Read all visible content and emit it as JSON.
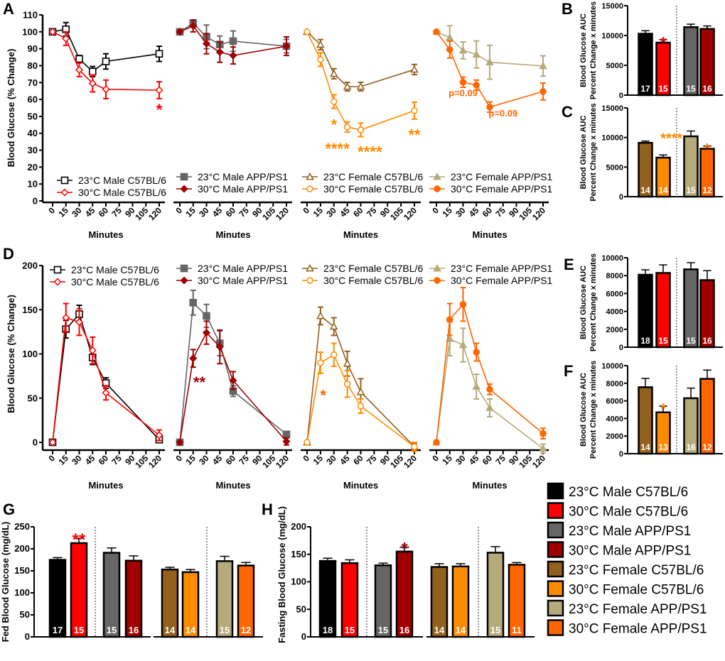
{
  "colors": {
    "m23c57": "#000000",
    "m30c57": "#ff0000",
    "m23app": "#666666",
    "m30app": "#a00000",
    "f23c57": "#93601e",
    "f30c57": "#ff8c00",
    "f23app": "#b5aa7a",
    "f30app": "#ff6600"
  },
  "legend": [
    {
      "key": "m23c57",
      "label": "23°C Male C57BL/6"
    },
    {
      "key": "m30c57",
      "label": "30°C Male C57BL/6"
    },
    {
      "key": "m23app",
      "label": "23°C Male APP/PS1"
    },
    {
      "key": "m30app",
      "label": "30°C Male APP/PS1"
    },
    {
      "key": "f23c57",
      "label": "23°C Female C57BL/6"
    },
    {
      "key": "f30c57",
      "label": "30°C Female C57BL/6"
    },
    {
      "key": "f23app",
      "label": "23°C Female APP/PS1"
    },
    {
      "key": "f30app",
      "label": "30°C Female APP/PS1"
    }
  ],
  "chart_data": [
    {
      "panel": "A",
      "type": "line",
      "ylabel": "Blood Glucose (% Change)",
      "xlabel": "Minutes",
      "ylim": [
        0,
        110
      ],
      "yticks": [
        0,
        10,
        20,
        30,
        40,
        50,
        60,
        70,
        80,
        90,
        100,
        110
      ],
      "xticks": [
        0,
        15,
        30,
        45,
        60,
        75,
        90,
        105,
        120
      ],
      "subplots": [
        {
          "series": [
            {
              "key": "m23c57",
              "name": "23°C Male C57BL/6",
              "marker": "square-open",
              "x": [
                0,
                15,
                30,
                45,
                60,
                120
              ],
              "y": [
                100,
                101.5,
                84,
                76.5,
                82.5,
                87
              ],
              "err": [
                0,
                4,
                2,
                3,
                4.5,
                4.5
              ]
            },
            {
              "key": "m30c57",
              "name": "30°C Male C57BL/6",
              "marker": "diamond-open",
              "x": [
                0,
                15,
                30,
                45,
                60,
                120
              ],
              "y": [
                100,
                96,
                77.5,
                69.5,
                66,
                65.5
              ],
              "err": [
                0,
                4,
                4,
                5,
                5.5,
                5
              ]
            }
          ],
          "annotations": [
            {
              "text": "*",
              "x": 120,
              "y": 55,
              "key": "m30c57"
            }
          ]
        },
        {
          "series": [
            {
              "key": "m23app",
              "name": "23°C Male APP/PS1",
              "marker": "square",
              "x": [
                0,
                15,
                30,
                45,
                60,
                120
              ],
              "y": [
                100,
                105,
                97,
                92.5,
                94.5,
                91.5
              ],
              "err": [
                0,
                2,
                7,
                5,
                6,
                4
              ]
            },
            {
              "key": "m30app",
              "name": "30°C Male APP/PS1",
              "marker": "diamond",
              "x": [
                0,
                15,
                30,
                45,
                60,
                120
              ],
              "y": [
                100,
                103.5,
                93,
                88,
                86,
                91.5
              ],
              "err": [
                0,
                3.5,
                6,
                6,
                5,
                5.5
              ]
            }
          ],
          "annotations": []
        },
        {
          "series": [
            {
              "key": "f23c57",
              "name": "23°C Female C57BL/6",
              "marker": "triangle-open",
              "x": [
                0,
                15,
                30,
                45,
                60,
                120
              ],
              "y": [
                100,
                92.4,
                75.2,
                67.6,
                67.6,
                77.7
              ],
              "err": [
                0,
                3,
                3,
                2.5,
                2.5,
                3
              ]
            },
            {
              "key": "f30c57",
              "name": "30°C Female C57BL/6",
              "marker": "circle-open",
              "x": [
                0,
                15,
                30,
                45,
                60,
                120
              ],
              "y": [
                100,
                83.6,
                58.8,
                43.7,
                42,
                53.4
              ],
              "err": [
                0,
                4,
                4,
                3,
                4,
                5
              ]
            }
          ],
          "annotations": [
            {
              "text": "*",
              "x": 30,
              "y": 46,
              "key": "f30c57"
            },
            {
              "text": "****",
              "x": 37,
              "y": 32,
              "key": "f30c57"
            },
            {
              "text": "****",
              "x": 67,
              "y": 30,
              "key": "f30c57"
            },
            {
              "text": "**",
              "x": 120,
              "y": 40,
              "key": "f30c57"
            }
          ]
        },
        {
          "series": [
            {
              "key": "f23app",
              "name": "23°C Female APP/PS1",
              "marker": "triangle",
              "x": [
                0,
                15,
                30,
                45,
                60,
                120
              ],
              "y": [
                100,
                96.6,
                89,
                86.6,
                82,
                79.8
              ],
              "err": [
                0,
                7,
                5,
                8,
                10,
                6
              ]
            },
            {
              "key": "f30app",
              "name": "30°C Female APP/PS1",
              "marker": "circle",
              "x": [
                0,
                15,
                30,
                45,
                60,
                120
              ],
              "y": [
                100,
                89.5,
                70.2,
                68.5,
                55.5,
                64.7
              ],
              "err": [
                0,
                5,
                3,
                3,
                3,
                5
              ]
            }
          ],
          "annotations": [
            {
              "text": "p=0.09",
              "x": 30,
              "y": 62,
              "key": "f30app"
            },
            {
              "text": "p=0.09",
              "x": 75,
              "y": 50,
              "key": "f30app"
            }
          ]
        }
      ]
    },
    {
      "panel": "D",
      "type": "line",
      "ylabel": "Blood Glucose (% Change)",
      "xlabel": "Minutes",
      "ylim": [
        0,
        200
      ],
      "yticks": [
        0,
        50,
        100,
        150,
        200
      ],
      "xticks": [
        0,
        15,
        30,
        45,
        60,
        75,
        90,
        105,
        120
      ],
      "subplots": [
        {
          "series": [
            {
              "key": "m23c57",
              "name": "23°C Male C57BL/6",
              "marker": "square-open",
              "x": [
                0,
                15,
                30,
                45,
                60,
                120
              ],
              "y": [
                0,
                128,
                145,
                96,
                67,
                3
              ],
              "err": [
                0,
                10,
                10,
                8,
                6,
                2
              ]
            },
            {
              "key": "m30c57",
              "name": "30°C Male C57BL/6",
              "marker": "diamond-open",
              "x": [
                0,
                15,
                30,
                45,
                60,
                120
              ],
              "y": [
                0,
                141,
                136,
                104,
                56,
                8
              ],
              "err": [
                0,
                16,
                15,
                15,
                8,
                6
              ]
            }
          ],
          "annotations": []
        },
        {
          "series": [
            {
              "key": "m23app",
              "name": "23°C Male APP/PS1",
              "marker": "square",
              "x": [
                0,
                15,
                30,
                45,
                60,
                120
              ],
              "y": [
                0,
                158,
                143,
                112,
                58,
                9
              ],
              "err": [
                0,
                14,
                13,
                14,
                6,
                3
              ]
            },
            {
              "key": "m30app",
              "name": "30°C Male APP/PS1",
              "marker": "diamond",
              "x": [
                0,
                15,
                30,
                45,
                60,
                120
              ],
              "y": [
                0,
                95,
                124,
                108,
                70,
                1
              ],
              "err": [
                0,
                10,
                13,
                19,
                10,
                4
              ]
            }
          ],
          "annotations": [
            {
              "text": "**",
              "x": 22,
              "y": 70,
              "key": "m30app"
            }
          ]
        },
        {
          "series": [
            {
              "key": "f23c57",
              "name": "23°C Female C57BL/6",
              "marker": "triangle-open",
              "x": [
                0,
                15,
                30,
                45,
                60,
                120
              ],
              "y": [
                0,
                143,
                131,
                89,
                57,
                -5
              ],
              "err": [
                0,
                10,
                10,
                14,
                15,
                4
              ]
            },
            {
              "key": "f30c57",
              "name": "30°C Female C57BL/6",
              "marker": "circle-open",
              "x": [
                0,
                15,
                30,
                45,
                60,
                120
              ],
              "y": [
                0,
                90,
                99,
                66,
                41,
                -5
              ],
              "err": [
                0,
                12,
                13,
                15,
                8,
                5
              ]
            }
          ],
          "annotations": [
            {
              "text": "*",
              "x": 18,
              "y": 55,
              "key": "f30app"
            }
          ]
        },
        {
          "series": [
            {
              "key": "f23app",
              "name": "23°C Female APP/PS1",
              "marker": "triangle",
              "x": [
                0,
                15,
                30,
                45,
                60,
                120
              ],
              "y": [
                0,
                117,
                110,
                63,
                39,
                -7
              ],
              "err": [
                0,
                19,
                19,
                14,
                10,
                5
              ]
            },
            {
              "key": "f30app",
              "name": "30°C Female APP/PS1",
              "marker": "circle",
              "x": [
                0,
                15,
                30,
                45,
                60,
                120
              ],
              "y": [
                0,
                139,
                156,
                102,
                60,
                10
              ],
              "err": [
                0,
                18,
                19,
                10,
                6,
                6
              ]
            }
          ],
          "annotations": []
        }
      ]
    },
    {
      "panel": "B",
      "type": "bar",
      "ylabel": [
        "Blood Glucose AUC",
        "Percent Change x minutes"
      ],
      "ylim": [
        0,
        15000
      ],
      "yticks": [
        0,
        5000,
        10000,
        15000
      ],
      "keys": [
        "m23c57",
        "m30c57",
        "m23app",
        "m30app"
      ],
      "values": [
        10300,
        8800,
        11400,
        11100
      ],
      "err": [
        500,
        500,
        500,
        500
      ],
      "n": [
        "17",
        "15",
        "15",
        "16"
      ],
      "annotations": [
        {
          "text": "*",
          "bar": 1,
          "key": "m30c57"
        }
      ]
    },
    {
      "panel": "C",
      "type": "bar",
      "ylabel": [
        "Blood Glucose AUC",
        "Percent Change x minutes"
      ],
      "ylim": [
        0,
        15000
      ],
      "yticks": [
        0,
        5000,
        10000,
        15000
      ],
      "keys": [
        "f23c57",
        "f30c57",
        "f23app",
        "f30app"
      ],
      "values": [
        9100,
        6600,
        10200,
        8100
      ],
      "err": [
        300,
        450,
        900,
        450
      ],
      "n": [
        "14",
        "14",
        "15",
        "12"
      ],
      "annotations": [
        {
          "text": "****",
          "bar": 1.3,
          "key": "f30c57",
          "yval": 10500
        },
        {
          "text": "*",
          "bar": 3,
          "key": "f30app"
        }
      ]
    },
    {
      "panel": "E",
      "type": "bar",
      "ylabel": [
        "Blood Glucose AUC",
        "Percent Change x minutes"
      ],
      "ylim": [
        0,
        10000
      ],
      "yticks": [
        0,
        2000,
        4000,
        6000,
        8000,
        10000
      ],
      "keys": [
        "m23c57",
        "m30c57",
        "m23app",
        "m30app"
      ],
      "values": [
        8100,
        8300,
        8700,
        7500
      ],
      "err": [
        550,
        900,
        750,
        1050
      ],
      "n": [
        "18",
        "15",
        "15",
        "16"
      ],
      "annotations": []
    },
    {
      "panel": "F",
      "type": "bar",
      "ylabel": [
        "Blood Glucose AUC",
        "Percent Change x minutes"
      ],
      "ylim": [
        0,
        10000
      ],
      "yticks": [
        0,
        2000,
        4000,
        6000,
        8000,
        10000
      ],
      "keys": [
        "f23c57",
        "f30c57",
        "f23app",
        "f30app"
      ],
      "values": [
        7550,
        4700,
        6300,
        8500
      ],
      "err": [
        1000,
        700,
        1150,
        1000
      ],
      "n": [
        "14",
        "13",
        "16",
        "12"
      ],
      "annotations": [
        {
          "text": "*",
          "bar": 1,
          "key": "f30c57"
        }
      ]
    },
    {
      "panel": "G",
      "type": "bar",
      "ylabel": [
        "Fed Blood Glucose (mg/dL)"
      ],
      "ylim": [
        0,
        250
      ],
      "yticks": [
        0,
        50,
        100,
        150,
        200,
        250
      ],
      "keys": [
        "m23c57",
        "m30c57",
        "m23app",
        "m30app",
        "f23c57",
        "f30c57",
        "f23app",
        "f30app"
      ],
      "values": [
        175,
        213,
        191,
        173,
        153,
        147,
        172,
        162
      ],
      "err": [
        5,
        11,
        11,
        11,
        5,
        6,
        11,
        7
      ],
      "n": [
        "17",
        "15",
        "15",
        "16",
        "14",
        "14",
        "15",
        "12"
      ],
      "annotations": [
        {
          "text": "**",
          "bar": 1,
          "key": "m30c57"
        }
      ]
    },
    {
      "panel": "H",
      "type": "bar",
      "ylabel": [
        "Fasting Blood Glucose (mg/dL)"
      ],
      "ylim": [
        0,
        200
      ],
      "yticks": [
        0,
        50,
        100,
        150,
        200
      ],
      "keys": [
        "m23c57",
        "m30c57",
        "m23app",
        "m30app",
        "f23c57",
        "f30c57",
        "f23app",
        "f30app"
      ],
      "values": [
        138,
        134,
        130,
        155,
        127,
        128,
        153,
        131
      ],
      "err": [
        5,
        6,
        4,
        8,
        6,
        5,
        11,
        4
      ],
      "n": [
        "18",
        "15",
        "15",
        "16",
        "14",
        "14",
        "15",
        "11"
      ],
      "annotations": [
        {
          "text": "*",
          "bar": 3,
          "key": "m30app"
        }
      ]
    }
  ]
}
